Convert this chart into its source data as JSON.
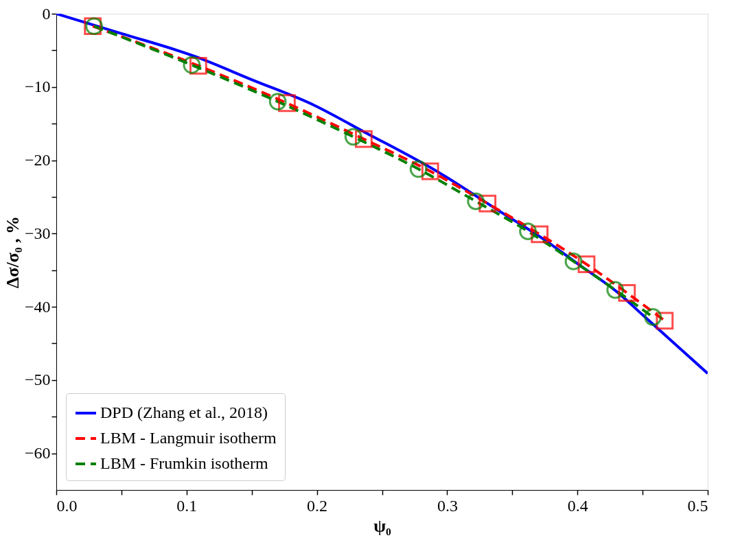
{
  "chart_data": {
    "type": "line",
    "xlabel": "ψ₀",
    "ylabel": "Δσ/σ₀ , %",
    "xlim": [
      0,
      0.5
    ],
    "ylim": [
      -65,
      0
    ],
    "xticks": [
      {
        "value": 0,
        "label": "0.0"
      },
      {
        "value": 0.05,
        "label": null
      },
      {
        "value": 0.1,
        "label": "0.1"
      },
      {
        "value": 0.15,
        "label": null
      },
      {
        "value": 0.2,
        "label": "0.2"
      },
      {
        "value": 0.25,
        "label": null
      },
      {
        "value": 0.3,
        "label": "0.3"
      },
      {
        "value": 0.35,
        "label": null
      },
      {
        "value": 0.4,
        "label": "0.4"
      },
      {
        "value": 0.45,
        "label": null
      },
      {
        "value": 0.5,
        "label": "0.5"
      }
    ],
    "yticks": [
      {
        "value": -60,
        "label": "−60"
      },
      {
        "value": -55,
        "label": null
      },
      {
        "value": -50,
        "label": "−50"
      },
      {
        "value": -45,
        "label": null
      },
      {
        "value": -40,
        "label": "−40"
      },
      {
        "value": -35,
        "label": null
      },
      {
        "value": -30,
        "label": "−30"
      },
      {
        "value": -25,
        "label": null
      },
      {
        "value": -20,
        "label": "−20"
      },
      {
        "value": -15,
        "label": null
      },
      {
        "value": -10,
        "label": "−10"
      },
      {
        "value": -5,
        "label": null
      },
      {
        "value": 0,
        "label": "0"
      }
    ],
    "grid": false,
    "legend": "bottom left",
    "series": [
      {
        "name": "DPD (Zhang et al., 2018)",
        "color": "#0000ff",
        "marker": "none",
        "line_style": "solid",
        "x": [
          0,
          0.05,
          0.106,
          0.15,
          0.198,
          0.236,
          0.293,
          0.338,
          0.375,
          0.4,
          0.432,
          0.45,
          0.5
        ],
        "values": [
          0,
          -2.7,
          -5.8,
          -9.0,
          -12.5,
          -16.1,
          -21.6,
          -26.7,
          -30.9,
          -34.1,
          -38.2,
          -41.1,
          -49.1
        ]
      },
      {
        "name": "LBM - Langmuir isotherm",
        "color": "#ff0000",
        "marker": "square",
        "line_style": "dashed",
        "x": [
          0.028,
          0.109,
          0.177,
          0.236,
          0.287,
          0.331,
          0.371,
          0.407,
          0.438,
          0.467
        ],
        "values": [
          -1.7,
          -7.1,
          -12.2,
          -17.1,
          -21.5,
          -25.9,
          -30.1,
          -34.2,
          -38.1,
          -41.9
        ]
      },
      {
        "name": "LBM - Frumkin isotherm",
        "color": "#008000",
        "marker": "circle",
        "line_style": "dashed",
        "x": [
          0.029,
          0.104,
          0.17,
          0.228,
          0.278,
          0.322,
          0.362,
          0.397,
          0.429,
          0.458
        ],
        "values": [
          -1.7,
          -7.0,
          -12.0,
          -16.8,
          -21.2,
          -25.6,
          -29.7,
          -33.8,
          -37.7,
          -41.4
        ]
      }
    ]
  }
}
